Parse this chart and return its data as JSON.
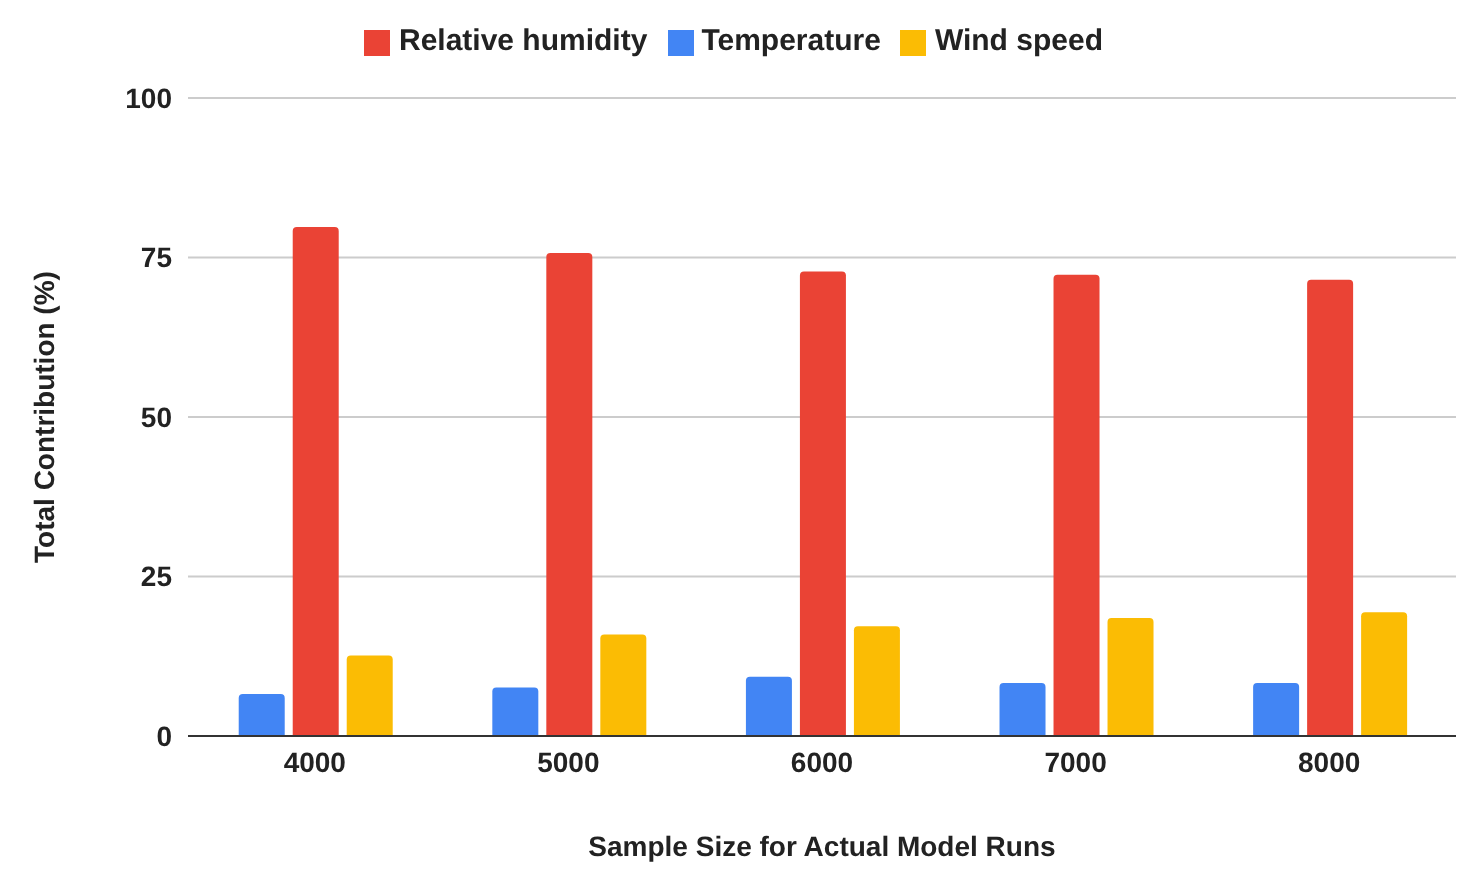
{
  "chart_data": {
    "type": "bar",
    "xlabel": "Sample Size for Actual Model Runs",
    "ylabel": "Total Contribution (%)",
    "categories": [
      "4000",
      "5000",
      "6000",
      "7000",
      "8000"
    ],
    "series": [
      {
        "name": "Temperature",
        "color": "#4285f4",
        "values": [
          6.6,
          7.6,
          9.3,
          8.3,
          8.3
        ]
      },
      {
        "name": "Relative humidity",
        "color": "#ea4335",
        "values": [
          79.8,
          75.7,
          72.8,
          72.3,
          71.5
        ]
      },
      {
        "name": "Wind speed",
        "color": "#fbbc04",
        "values": [
          12.6,
          15.9,
          17.2,
          18.5,
          19.4
        ]
      }
    ],
    "ylim": [
      0,
      100
    ],
    "yticks": [
      0,
      25,
      50,
      75,
      100
    ],
    "grid": "y",
    "legend": "top"
  }
}
